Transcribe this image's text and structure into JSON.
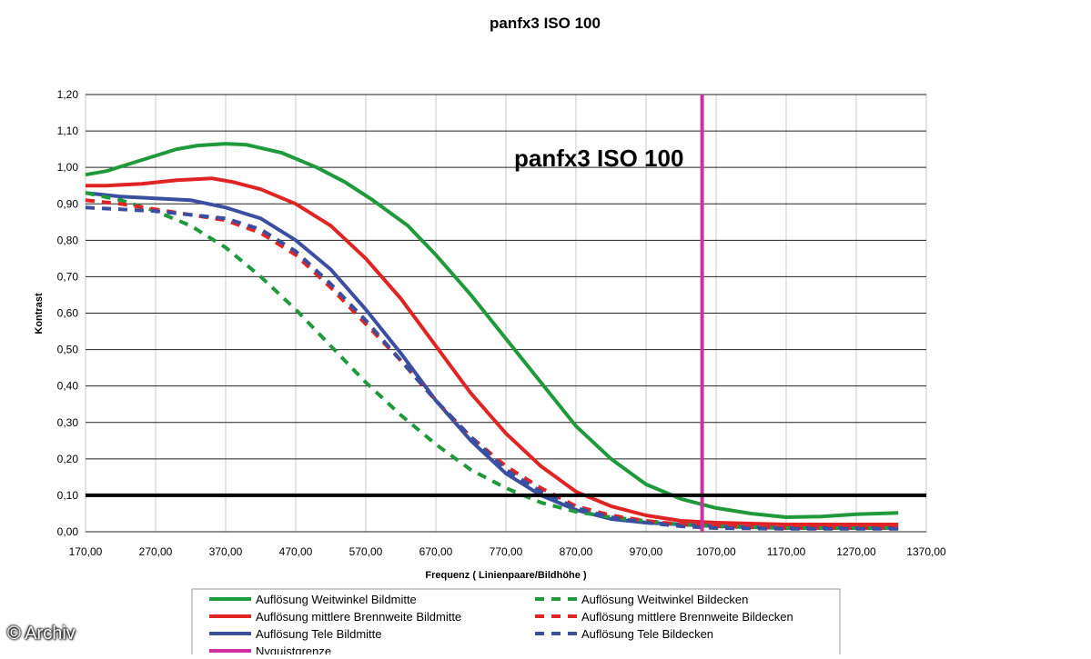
{
  "chart_data": {
    "type": "line",
    "title": "panfx3 ISO 100",
    "inplot_title": "panfx3 ISO 100",
    "xlabel": "Frequenz ( Linienpaare/Bildhöhe )",
    "ylabel": "Kontrast",
    "xlim": [
      170,
      1370
    ],
    "ylim": [
      0,
      1.2
    ],
    "x_ticks": [
      "170,00",
      "270,00",
      "370,00",
      "470,00",
      "570,00",
      "670,00",
      "770,00",
      "870,00",
      "970,00",
      "1070,00",
      "1170,00",
      "1270,00",
      "1370,00"
    ],
    "y_ticks": [
      "0,00",
      "0,10",
      "0,20",
      "0,30",
      "0,40",
      "0,50",
      "0,60",
      "0,70",
      "0,80",
      "0,90",
      "1,00",
      "1,10",
      "1,20"
    ],
    "grid": true,
    "legend_position": "bottom",
    "series": [
      {
        "name": "Auflösung Weitwinkel Bildmitte",
        "color": "#1e9a3a",
        "style": "solid",
        "x": [
          170,
          200,
          250,
          300,
          330,
          370,
          400,
          450,
          500,
          540,
          580,
          630,
          670,
          720,
          770,
          820,
          870,
          920,
          970,
          1020,
          1070,
          1120,
          1170,
          1220,
          1270,
          1330
        ],
        "y": [
          0.98,
          0.99,
          1.02,
          1.05,
          1.06,
          1.065,
          1.062,
          1.04,
          1.0,
          0.96,
          0.91,
          0.84,
          0.76,
          0.65,
          0.53,
          0.41,
          0.29,
          0.2,
          0.13,
          0.09,
          0.065,
          0.05,
          0.04,
          0.042,
          0.048,
          0.052
        ]
      },
      {
        "name": "Auflösung mittlere Brennweite Bildmitte",
        "color": "#e02424",
        "style": "solid",
        "x": [
          170,
          200,
          250,
          300,
          350,
          380,
          420,
          470,
          520,
          570,
          620,
          670,
          720,
          770,
          820,
          870,
          920,
          970,
          1020,
          1070,
          1170,
          1270,
          1330
        ],
        "y": [
          0.95,
          0.95,
          0.955,
          0.965,
          0.97,
          0.96,
          0.94,
          0.9,
          0.84,
          0.75,
          0.64,
          0.51,
          0.38,
          0.27,
          0.18,
          0.11,
          0.07,
          0.045,
          0.03,
          0.025,
          0.02,
          0.02,
          0.02
        ]
      },
      {
        "name": "Auflösung Tele Bildmitte",
        "color": "#3a4fa0",
        "style": "solid",
        "x": [
          170,
          220,
          270,
          320,
          370,
          420,
          470,
          520,
          570,
          620,
          670,
          720,
          770,
          820,
          870,
          920,
          970,
          1020,
          1070,
          1170,
          1270,
          1330
        ],
        "y": [
          0.93,
          0.92,
          0.915,
          0.91,
          0.89,
          0.86,
          0.8,
          0.72,
          0.61,
          0.49,
          0.36,
          0.25,
          0.16,
          0.1,
          0.06,
          0.035,
          0.025,
          0.02,
          0.015,
          0.01,
          0.01,
          0.01
        ]
      },
      {
        "name": "Auflösung Weitwinkel Bildecken",
        "color": "#1e9a3a",
        "style": "dash",
        "x": [
          170,
          220,
          270,
          320,
          370,
          420,
          470,
          520,
          570,
          620,
          670,
          720,
          770,
          820,
          870,
          920,
          970,
          1020,
          1070,
          1170,
          1270,
          1330
        ],
        "y": [
          0.93,
          0.91,
          0.88,
          0.84,
          0.78,
          0.7,
          0.61,
          0.51,
          0.41,
          0.32,
          0.24,
          0.17,
          0.12,
          0.08,
          0.055,
          0.04,
          0.03,
          0.02,
          0.015,
          0.01,
          0.01,
          0.01
        ]
      },
      {
        "name": "Auflösung mittlere Brennweite Bildecken",
        "color": "#e02424",
        "style": "dash",
        "x": [
          170,
          220,
          270,
          320,
          370,
          420,
          470,
          520,
          570,
          620,
          670,
          720,
          770,
          820,
          870,
          920,
          970,
          1020,
          1070,
          1170,
          1270,
          1330
        ],
        "y": [
          0.91,
          0.9,
          0.885,
          0.87,
          0.855,
          0.82,
          0.76,
          0.67,
          0.57,
          0.47,
          0.36,
          0.26,
          0.18,
          0.12,
          0.07,
          0.045,
          0.03,
          0.02,
          0.015,
          0.01,
          0.01,
          0.01
        ]
      },
      {
        "name": "Auflösung Tele Bildecken",
        "color": "#3a4fa0",
        "style": "dash",
        "x": [
          170,
          220,
          270,
          320,
          370,
          420,
          470,
          520,
          570,
          620,
          670,
          720,
          770,
          820,
          870,
          920,
          970,
          1020,
          1070,
          1170,
          1270,
          1330
        ],
        "y": [
          0.89,
          0.885,
          0.88,
          0.87,
          0.86,
          0.83,
          0.77,
          0.68,
          0.58,
          0.47,
          0.36,
          0.26,
          0.17,
          0.11,
          0.065,
          0.04,
          0.025,
          0.015,
          0.01,
          0.008,
          0.008,
          0.008
        ]
      }
    ],
    "reference_lines": [
      {
        "name": "Nyquistgrenze",
        "orientation": "vertical",
        "x": 1050,
        "color": "#d02fa0"
      },
      {
        "orientation": "horizontal",
        "y": 0.1,
        "color": "#000000"
      }
    ]
  },
  "legend_items": [
    {
      "label": "Auflösung Weitwinkel Bildmitte",
      "color": "#1e9a3a",
      "style": "solid"
    },
    {
      "label": "Auflösung Weitwinkel Bildecken",
      "color": "#1e9a3a",
      "style": "dash"
    },
    {
      "label": "Auflösung mittlere Brennweite Bildmitte",
      "color": "#e02424",
      "style": "solid"
    },
    {
      "label": "Auflösung mittlere Brennweite Bildecken",
      "color": "#e02424",
      "style": "dash"
    },
    {
      "label": "Auflösung Tele Bildmitte",
      "color": "#3a4fa0",
      "style": "solid"
    },
    {
      "label": "Auflösung Tele Bildecken",
      "color": "#3a4fa0",
      "style": "dash"
    },
    {
      "label": "Nyquistgrenze",
      "color": "#d02fa0",
      "style": "solid"
    }
  ],
  "watermark": "© Archiv"
}
